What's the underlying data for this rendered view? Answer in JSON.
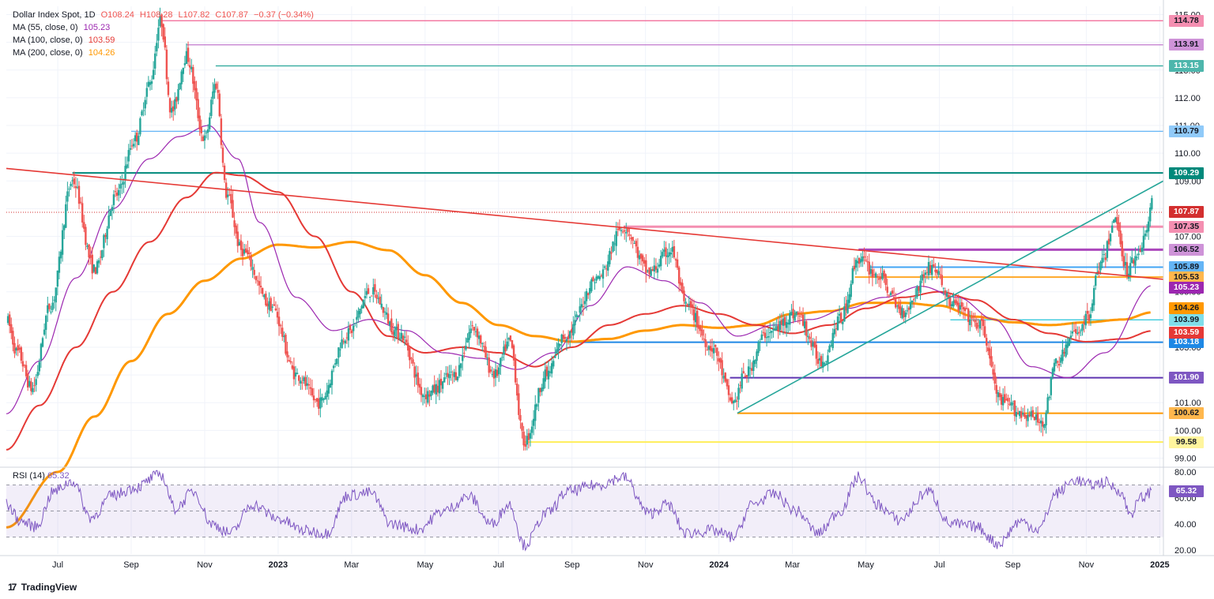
{
  "legend": {
    "title": "Dollar Index Spot, 1D",
    "o": "O108.24",
    "h": "H108.28",
    "l": "L107.82",
    "c": "C107.87",
    "chg": "−0.37 (−0.34%)",
    "ma55_label": "MA (55, close, 0)",
    "ma55_value": "105.23",
    "ma100_label": "MA (100, close, 0)",
    "ma100_value": "103.59",
    "ma200_label": "MA (200, close, 0)",
    "ma200_value": "104.26",
    "rsi_label": "RSI (14)",
    "rsi_value": "65.32"
  },
  "brand": {
    "logo": "17",
    "name": "TradingView"
  },
  "colors": {
    "ma55": "#9c27b0",
    "ma100": "#e53935",
    "ma200": "#ff9800",
    "rsi": "#7e57c2",
    "bull": "#26a69a",
    "bear": "#ef5350"
  },
  "chart_data": {
    "type": "candlestick",
    "instrument": "Dollar Index Spot",
    "timeframe": "1D",
    "y_ticks": [
      99.0,
      100.0,
      101.0,
      102.0,
      103.0,
      104.0,
      105.0,
      106.0,
      107.0,
      108.0,
      109.0,
      110.0,
      111.0,
      112.0,
      113.0,
      114.0,
      115.0
    ],
    "ylim": [
      98.7,
      115.3
    ],
    "x_labels": [
      "Jul",
      "Sep",
      "Nov",
      "2023",
      "Mar",
      "May",
      "Jul",
      "Sep",
      "Nov",
      "2024",
      "Mar",
      "May",
      "Jul",
      "Sep",
      "Nov",
      "2025"
    ],
    "x_label_positions": [
      0.5,
      2.5,
      4.5,
      6.5,
      8.5,
      10.5,
      12.5,
      14.5,
      16.5,
      18.5,
      20.5,
      22.5,
      24.5,
      26.5,
      28.5,
      30.5
    ],
    "x_range": [
      -0.9,
      30.6
    ],
    "anchors": [
      {
        "t": -0.9,
        "v": 104.0
      },
      {
        "t": -0.6,
        "v": 102.8
      },
      {
        "t": -0.2,
        "v": 101.5
      },
      {
        "t": 0.3,
        "v": 104.5
      },
      {
        "t": 0.9,
        "v": 109.0
      },
      {
        "t": 1.5,
        "v": 105.8
      },
      {
        "t": 2.1,
        "v": 108.5
      },
      {
        "t": 2.6,
        "v": 110.5
      },
      {
        "t": 3.0,
        "v": 112.5
      },
      {
        "t": 3.3,
        "v": 114.78
      },
      {
        "t": 3.6,
        "v": 111.5
      },
      {
        "t": 4.0,
        "v": 113.5
      },
      {
        "t": 4.5,
        "v": 110.5
      },
      {
        "t": 4.8,
        "v": 112.5
      },
      {
        "t": 5.1,
        "v": 108.5
      },
      {
        "t": 5.5,
        "v": 106.5
      },
      {
        "t": 6.3,
        "v": 104.5
      },
      {
        "t": 7.0,
        "v": 102.0
      },
      {
        "t": 7.6,
        "v": 101.0
      },
      {
        "t": 8.4,
        "v": 103.5
      },
      {
        "t": 9.0,
        "v": 105.0
      },
      {
        "t": 9.8,
        "v": 103.5
      },
      {
        "t": 10.5,
        "v": 101.3
      },
      {
        "t": 11.3,
        "v": 102.0
      },
      {
        "t": 11.8,
        "v": 103.7
      },
      {
        "t": 12.4,
        "v": 102.0
      },
      {
        "t": 12.8,
        "v": 103.2
      },
      {
        "t": 13.2,
        "v": 99.58
      },
      {
        "t": 13.8,
        "v": 102.0
      },
      {
        "t": 14.3,
        "v": 103.4
      },
      {
        "t": 15.2,
        "v": 105.5
      },
      {
        "t": 15.9,
        "v": 107.35
      },
      {
        "t": 16.6,
        "v": 105.7
      },
      {
        "t": 17.2,
        "v": 106.5
      },
      {
        "t": 17.6,
        "v": 104.5
      },
      {
        "t": 18.3,
        "v": 103.0
      },
      {
        "t": 18.9,
        "v": 101.0
      },
      {
        "t": 19.2,
        "v": 102.0
      },
      {
        "t": 19.8,
        "v": 103.5
      },
      {
        "t": 20.6,
        "v": 104.2
      },
      {
        "t": 21.3,
        "v": 102.5
      },
      {
        "t": 21.8,
        "v": 104.0
      },
      {
        "t": 22.3,
        "v": 106.2
      },
      {
        "t": 22.8,
        "v": 105.6
      },
      {
        "t": 23.5,
        "v": 104.3
      },
      {
        "t": 24.3,
        "v": 105.9
      },
      {
        "t": 24.9,
        "v": 104.5
      },
      {
        "t": 25.6,
        "v": 103.8
      },
      {
        "t": 26.2,
        "v": 101.0
      },
      {
        "t": 26.8,
        "v": 100.6
      },
      {
        "t": 27.3,
        "v": 100.3
      },
      {
        "t": 27.7,
        "v": 102.5
      },
      {
        "t": 28.2,
        "v": 103.5
      },
      {
        "t": 28.5,
        "v": 104.0
      },
      {
        "t": 28.9,
        "v": 106.0
      },
      {
        "t": 29.3,
        "v": 107.6
      },
      {
        "t": 29.6,
        "v": 105.8
      },
      {
        "t": 29.9,
        "v": 106.4
      },
      {
        "t": 30.1,
        "v": 107.0
      },
      {
        "t": 30.3,
        "v": 108.2
      }
    ],
    "ma55": [
      {
        "t": -0.9,
        "v": 100.6
      },
      {
        "t": 0.0,
        "v": 102.5
      },
      {
        "t": 1.0,
        "v": 105.5
      },
      {
        "t": 2.0,
        "v": 108.0
      },
      {
        "t": 3.0,
        "v": 109.8
      },
      {
        "t": 3.8,
        "v": 110.6
      },
      {
        "t": 4.6,
        "v": 111.0
      },
      {
        "t": 5.4,
        "v": 109.8
      },
      {
        "t": 6.0,
        "v": 107.5
      },
      {
        "t": 7.0,
        "v": 104.8
      },
      {
        "t": 8.0,
        "v": 103.6
      },
      {
        "t": 9.0,
        "v": 104.0
      },
      {
        "t": 10.0,
        "v": 103.6
      },
      {
        "t": 11.0,
        "v": 102.8
      },
      {
        "t": 12.0,
        "v": 102.6
      },
      {
        "t": 13.0,
        "v": 102.2
      },
      {
        "t": 14.0,
        "v": 102.8
      },
      {
        "t": 15.0,
        "v": 104.5
      },
      {
        "t": 16.0,
        "v": 105.9
      },
      {
        "t": 17.0,
        "v": 105.4
      },
      {
        "t": 18.0,
        "v": 104.6
      },
      {
        "t": 19.0,
        "v": 103.4
      },
      {
        "t": 20.0,
        "v": 103.8
      },
      {
        "t": 21.0,
        "v": 104.0
      },
      {
        "t": 22.0,
        "v": 104.4
      },
      {
        "t": 23.0,
        "v": 104.8
      },
      {
        "t": 24.0,
        "v": 105.2
      },
      {
        "t": 25.0,
        "v": 104.8
      },
      {
        "t": 26.0,
        "v": 104.0
      },
      {
        "t": 27.0,
        "v": 102.3
      },
      {
        "t": 28.0,
        "v": 101.9
      },
      {
        "t": 29.0,
        "v": 102.8
      },
      {
        "t": 30.3,
        "v": 105.23
      }
    ],
    "ma100": [
      {
        "t": -0.9,
        "v": 99.3
      },
      {
        "t": 0.0,
        "v": 100.9
      },
      {
        "t": 1.0,
        "v": 103.0
      },
      {
        "t": 2.0,
        "v": 105.0
      },
      {
        "t": 3.0,
        "v": 106.8
      },
      {
        "t": 4.0,
        "v": 108.4
      },
      {
        "t": 4.8,
        "v": 109.3
      },
      {
        "t": 5.5,
        "v": 109.2
      },
      {
        "t": 6.5,
        "v": 108.6
      },
      {
        "t": 7.5,
        "v": 107.0
      },
      {
        "t": 8.5,
        "v": 105.0
      },
      {
        "t": 9.5,
        "v": 103.4
      },
      {
        "t": 10.5,
        "v": 102.8
      },
      {
        "t": 11.5,
        "v": 103.0
      },
      {
        "t": 12.5,
        "v": 102.8
      },
      {
        "t": 13.5,
        "v": 102.3
      },
      {
        "t": 14.5,
        "v": 103.0
      },
      {
        "t": 15.5,
        "v": 103.8
      },
      {
        "t": 16.5,
        "v": 104.2
      },
      {
        "t": 17.5,
        "v": 104.5
      },
      {
        "t": 18.5,
        "v": 104.2
      },
      {
        "t": 19.5,
        "v": 103.8
      },
      {
        "t": 20.5,
        "v": 103.5
      },
      {
        "t": 21.5,
        "v": 103.8
      },
      {
        "t": 22.5,
        "v": 104.4
      },
      {
        "t": 23.5,
        "v": 104.8
      },
      {
        "t": 24.5,
        "v": 105.0
      },
      {
        "t": 25.5,
        "v": 104.7
      },
      {
        "t": 26.5,
        "v": 104.0
      },
      {
        "t": 27.5,
        "v": 103.5
      },
      {
        "t": 28.5,
        "v": 103.2
      },
      {
        "t": 29.5,
        "v": 103.3
      },
      {
        "t": 30.3,
        "v": 103.59
      }
    ],
    "ma200": [
      {
        "t": -0.9,
        "v": 96.5
      },
      {
        "t": 0.5,
        "v": 98.5
      },
      {
        "t": 1.5,
        "v": 100.5
      },
      {
        "t": 2.5,
        "v": 102.5
      },
      {
        "t": 3.5,
        "v": 104.2
      },
      {
        "t": 4.5,
        "v": 105.4
      },
      {
        "t": 5.5,
        "v": 106.2
      },
      {
        "t": 6.5,
        "v": 106.7
      },
      {
        "t": 7.5,
        "v": 106.6
      },
      {
        "t": 8.5,
        "v": 106.8
      },
      {
        "t": 9.5,
        "v": 106.5
      },
      {
        "t": 10.5,
        "v": 105.6
      },
      {
        "t": 11.5,
        "v": 104.6
      },
      {
        "t": 12.5,
        "v": 103.8
      },
      {
        "t": 13.5,
        "v": 103.4
      },
      {
        "t": 14.5,
        "v": 103.2
      },
      {
        "t": 15.5,
        "v": 103.3
      },
      {
        "t": 16.5,
        "v": 103.6
      },
      {
        "t": 17.5,
        "v": 103.8
      },
      {
        "t": 18.5,
        "v": 103.7
      },
      {
        "t": 19.5,
        "v": 103.8
      },
      {
        "t": 20.5,
        "v": 104.2
      },
      {
        "t": 21.5,
        "v": 104.3
      },
      {
        "t": 22.5,
        "v": 104.6
      },
      {
        "t": 23.5,
        "v": 104.6
      },
      {
        "t": 24.5,
        "v": 104.5
      },
      {
        "t": 25.5,
        "v": 104.1
      },
      {
        "t": 26.5,
        "v": 103.9
      },
      {
        "t": 27.5,
        "v": 103.8
      },
      {
        "t": 28.5,
        "v": 103.9
      },
      {
        "t": 29.5,
        "v": 104.0
      },
      {
        "t": 30.3,
        "v": 104.26
      }
    ],
    "levels": [
      {
        "value": 114.78,
        "label": "114.78",
        "color": "#f06292",
        "t_start": 3.3,
        "bg": "#f48fb1",
        "fg": "#131722"
      },
      {
        "value": 113.91,
        "label": "113.91",
        "color": "#ba68c8",
        "t_start": 4.0,
        "bg": "#ce93d8",
        "fg": "#131722"
      },
      {
        "value": 113.15,
        "label": "113.15",
        "color": "#26a69a",
        "t_start": 4.8,
        "bg": "#4db6ac",
        "fg": "#ffffff"
      },
      {
        "value": 110.79,
        "label": "110.79",
        "color": "#64b5f6",
        "t_start": 2.5,
        "bg": "#90caf9",
        "fg": "#131722"
      },
      {
        "value": 109.29,
        "label": "109.29",
        "color": "#00897b",
        "t_start": 0.9,
        "bg": "#00897b",
        "fg": "#ffffff",
        "width": 2
      },
      {
        "value": 107.35,
        "label": "107.35",
        "color": "#f48fb1",
        "t_start": 15.9,
        "bg": "#f48fb1",
        "fg": "#131722",
        "width": 3
      },
      {
        "value": 106.52,
        "label": "106.52",
        "color": "#ab47bc",
        "t_start": 22.3,
        "bg": "#ce93d8",
        "fg": "#131722",
        "width": 3
      },
      {
        "value": 105.89,
        "label": "105.89",
        "color": "#42a5f5",
        "t_start": 22.6,
        "bg": "#64b5f6",
        "fg": "#131722",
        "width": 2
      },
      {
        "value": 105.53,
        "label": "105.53",
        "color": "#ffa726",
        "t_start": 22.2,
        "bg": "#ffb74d",
        "fg": "#131722",
        "width": 2
      },
      {
        "value": 103.99,
        "label": "103.99",
        "color": "#26c6da",
        "t_start": 24.8,
        "bg": "#80deea",
        "fg": "#131722"
      },
      {
        "value": 103.18,
        "label": "103.18",
        "color": "#1e88e5",
        "t_start": 14.5,
        "bg": "#1e88e5",
        "fg": "#ffffff",
        "width": 2
      },
      {
        "value": 101.9,
        "label": "101.90",
        "color": "#5e35b1",
        "t_start": 18.8,
        "bg": "#7e57c2",
        "fg": "#ffffff",
        "width": 2
      },
      {
        "value": 100.62,
        "label": "100.62",
        "color": "#ff9800",
        "t_start": 19.0,
        "bg": "#ffb74d",
        "fg": "#131722",
        "width": 2
      },
      {
        "value": 99.58,
        "label": "99.58",
        "color": "#ffee58",
        "t_start": 13.2,
        "bg": "#fff59d",
        "fg": "#131722",
        "width": 2
      }
    ],
    "trendlines": [
      {
        "name": "descending trendline",
        "color": "#e53935",
        "t1": -0.9,
        "v1": 109.45,
        "t2": 30.6,
        "v2": 105.45
      },
      {
        "name": "ascending trendline",
        "color": "#26a69a",
        "t1": 19.0,
        "v1": 100.62,
        "t2": 30.6,
        "v2": 109.0
      }
    ],
    "last_price": {
      "value": 107.87,
      "label": "107.87",
      "bg": "#d32f2f",
      "fg": "#ffffff"
    },
    "ma_badges": [
      {
        "value": 105.23,
        "label": "105.23",
        "bg": "#9c27b0",
        "fg": "#ffffff"
      },
      {
        "value": 104.26,
        "label": "104.26",
        "bg": "#ff9800",
        "fg": "#131722"
      },
      {
        "value": 103.59,
        "label": "103.59",
        "bg": "#e53935",
        "fg": "#ffffff"
      }
    ],
    "rsi": {
      "y_ticks": [
        20.0,
        40.0,
        60.0,
        80.0
      ],
      "ylim": [
        17,
        83
      ],
      "band": [
        30,
        70
      ],
      "mid": 50,
      "last": {
        "value": 65.32,
        "label": "65.32"
      },
      "anchors": [
        {
          "t": -0.9,
          "v": 55
        },
        {
          "t": -0.5,
          "v": 42
        },
        {
          "t": -0.1,
          "v": 38
        },
        {
          "t": 0.4,
          "v": 65
        },
        {
          "t": 0.9,
          "v": 73
        },
        {
          "t": 1.4,
          "v": 45
        },
        {
          "t": 2.0,
          "v": 62
        },
        {
          "t": 2.6,
          "v": 68
        },
        {
          "t": 3.3,
          "v": 78
        },
        {
          "t": 3.7,
          "v": 52
        },
        {
          "t": 4.2,
          "v": 65
        },
        {
          "t": 4.7,
          "v": 40
        },
        {
          "t": 5.2,
          "v": 33
        },
        {
          "t": 5.8,
          "v": 55
        },
        {
          "t": 6.5,
          "v": 44
        },
        {
          "t": 7.2,
          "v": 35
        },
        {
          "t": 7.8,
          "v": 33
        },
        {
          "t": 8.4,
          "v": 62
        },
        {
          "t": 9.0,
          "v": 64
        },
        {
          "t": 9.6,
          "v": 40
        },
        {
          "t": 10.3,
          "v": 36
        },
        {
          "t": 11.0,
          "v": 50
        },
        {
          "t": 11.7,
          "v": 61
        },
        {
          "t": 12.3,
          "v": 40
        },
        {
          "t": 12.8,
          "v": 55
        },
        {
          "t": 13.2,
          "v": 24
        },
        {
          "t": 13.8,
          "v": 48
        },
        {
          "t": 14.4,
          "v": 65
        },
        {
          "t": 15.2,
          "v": 70
        },
        {
          "t": 15.9,
          "v": 76
        },
        {
          "t": 16.6,
          "v": 48
        },
        {
          "t": 17.1,
          "v": 55
        },
        {
          "t": 17.6,
          "v": 33
        },
        {
          "t": 18.3,
          "v": 35
        },
        {
          "t": 18.9,
          "v": 30
        },
        {
          "t": 19.4,
          "v": 55
        },
        {
          "t": 20.0,
          "v": 63
        },
        {
          "t": 20.6,
          "v": 50
        },
        {
          "t": 21.2,
          "v": 33
        },
        {
          "t": 21.8,
          "v": 50
        },
        {
          "t": 22.3,
          "v": 76
        },
        {
          "t": 22.8,
          "v": 55
        },
        {
          "t": 23.4,
          "v": 43
        },
        {
          "t": 24.2,
          "v": 65
        },
        {
          "t": 24.8,
          "v": 40
        },
        {
          "t": 25.5,
          "v": 38
        },
        {
          "t": 26.1,
          "v": 25
        },
        {
          "t": 26.7,
          "v": 42
        },
        {
          "t": 27.2,
          "v": 36
        },
        {
          "t": 27.7,
          "v": 64
        },
        {
          "t": 28.2,
          "v": 74
        },
        {
          "t": 28.6,
          "v": 70
        },
        {
          "t": 29.0,
          "v": 72
        },
        {
          "t": 29.4,
          "v": 66
        },
        {
          "t": 29.7,
          "v": 48
        },
        {
          "t": 30.0,
          "v": 60
        },
        {
          "t": 30.3,
          "v": 65.32
        }
      ]
    }
  }
}
